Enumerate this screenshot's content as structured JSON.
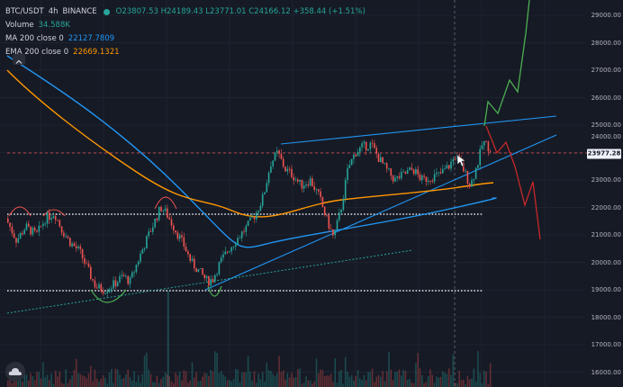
{
  "legend": {
    "symbol": "BTC/USDT",
    "interval": "4h",
    "exchange": "BINANCE",
    "ohlc": "O23807.53  H24189.43  L23771.01  C24166.12  +358.44 (+1.51%)",
    "volume_label": "Volume",
    "volume_value": "34.588K",
    "ma_label": "MA 200 close 0",
    "ma_value": "22127.7809",
    "ema_label": "EMA 200 close 0",
    "ema_value": "22669.1321"
  },
  "price_scale": {
    "ticks": [
      "29000.00",
      "28000.00",
      "27000.00",
      "26000.00",
      "25000.00",
      "24000.00",
      "23000.00",
      "22000.00",
      "21000.00",
      "20000.00",
      "19000.00",
      "18000.00",
      "17000.00",
      "16000.00"
    ],
    "current_price": "23977.28"
  },
  "colors": {
    "background": "#161a25",
    "up": "#26a69a",
    "down": "#ef5350",
    "ma": "#2196f3",
    "ema": "#ff9800",
    "projection_up": "#4caf50",
    "projection_down": "#c62828"
  }
}
